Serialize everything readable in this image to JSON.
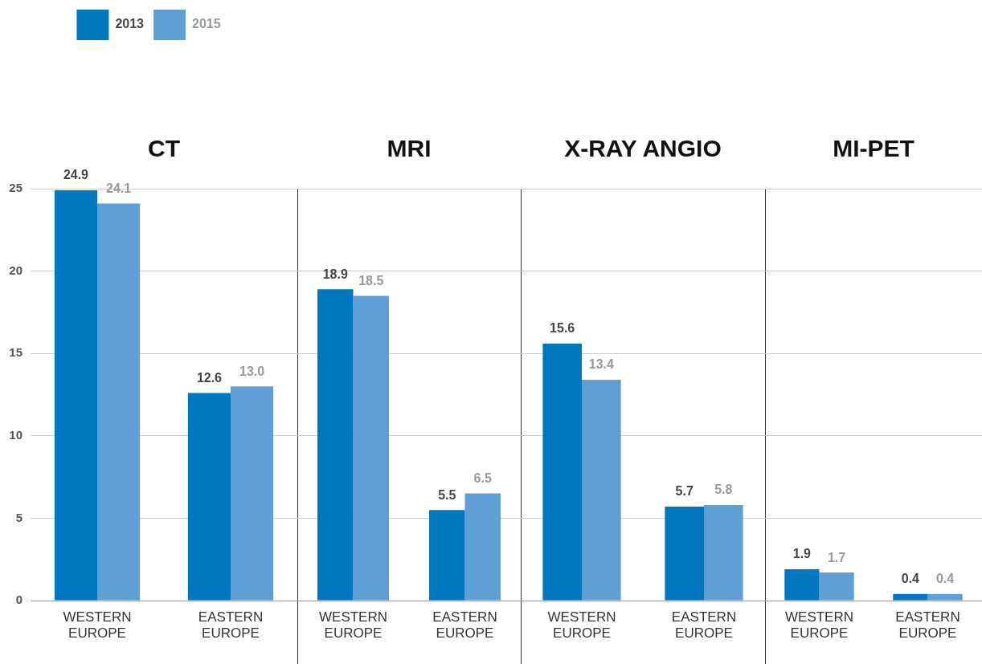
{
  "chart_data": [
    {
      "type": "bar",
      "title": "CT",
      "categories": [
        "WESTERN EUROPE",
        "EASTERN EUROPE"
      ],
      "series": [
        {
          "name": "2013",
          "color": "#0077be",
          "values": [
            24.9,
            12.6
          ],
          "value_labels": [
            "24.9",
            "12.6"
          ]
        },
        {
          "name": "2015",
          "color": "#5ea0d5",
          "values": [
            24.1,
            13.0
          ],
          "value_labels": [
            "24.1",
            "13.0"
          ]
        }
      ],
      "ylim": [
        0,
        25
      ],
      "yticks": [
        0,
        5,
        10,
        15,
        20,
        25
      ],
      "grid": "y",
      "legend": "top left"
    },
    {
      "type": "bar",
      "title": "MRI",
      "categories": [
        "WESTERN EUROPE",
        "EASTERN EUROPE"
      ],
      "series": [
        {
          "color": "#0077be",
          "values": [
            18.9,
            5.5
          ],
          "value_labels": [
            "18.9",
            "5.5"
          ]
        },
        {
          "color": "#5ea0d5",
          "values": [
            18.5,
            6.5
          ],
          "value_labels": [
            "18.5",
            "6.5"
          ]
        }
      ],
      "ylim": [
        0,
        25
      ],
      "yticks": [
        0,
        5,
        10,
        15,
        20,
        25
      ],
      "grid": "y",
      "tick_labels": "x"
    },
    {
      "type": "bar",
      "title": "X-RAY ANGIO",
      "categories": [
        "WESTERN EUROPE",
        "EASTERN EUROPE"
      ],
      "series": [
        {
          "color": "#0077be",
          "values": [
            15.6,
            5.7
          ],
          "value_labels": [
            "15.6",
            "5.7"
          ]
        },
        {
          "color": "#5ea0d5",
          "values": [
            13.4,
            5.8
          ],
          "value_labels": [
            "13.4",
            "5.8"
          ]
        }
      ],
      "ylim": [
        0,
        25
      ],
      "yticks": [
        0,
        5,
        10,
        15,
        20,
        25
      ],
      "grid": "y",
      "tick_labels": "x"
    },
    {
      "type": "bar",
      "title": "MI-PET",
      "categories": [
        "WESTERN EUROPE",
        "EASTERN EUROPE"
      ],
      "series": [
        {
          "color": "#0077be",
          "values": [
            1.9,
            0.4
          ],
          "value_labels": [
            "1.9",
            "0.4"
          ]
        },
        {
          "color": "#5ea0d5",
          "values": [
            1.7,
            0.4
          ],
          "value_labels": [
            "1.7",
            "0.4"
          ]
        }
      ],
      "ylim": [
        0,
        25
      ],
      "yticks": [
        0,
        5,
        10,
        15,
        20,
        25
      ],
      "grid": "y",
      "tick_labels": "x"
    }
  ]
}
